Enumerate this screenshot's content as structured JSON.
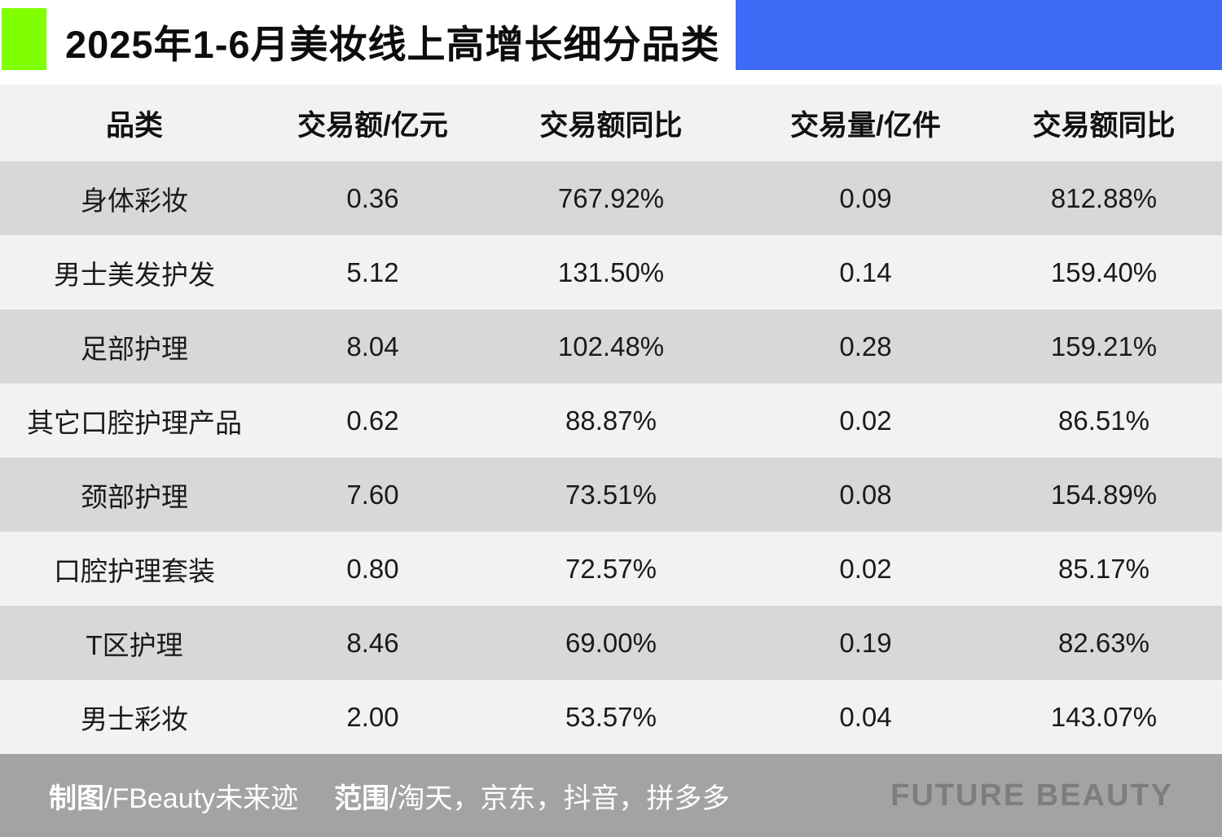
{
  "header": {
    "title": "2025年1-6月美妆线上高增长细分品类"
  },
  "colors": {
    "accent_green": "#7fff00",
    "accent_blue": "#3f6af5",
    "row_dark": "#d8d8d8",
    "row_light": "#f2f2f2",
    "footer_gray": "#a3a3a3",
    "brand_text_gray": "#7d7d7d"
  },
  "table": {
    "columns": [
      "品类",
      "交易额/亿元",
      "交易额同比",
      "交易量/亿件",
      "交易额同比"
    ],
    "rows": [
      [
        "身体彩妆",
        "0.36",
        "767.92%",
        "0.09",
        "812.88%"
      ],
      [
        "男士美发护发",
        "5.12",
        "131.50%",
        "0.14",
        "159.40%"
      ],
      [
        "足部护理",
        "8.04",
        "102.48%",
        "0.28",
        "159.21%"
      ],
      [
        "其它口腔护理产品",
        "0.62",
        "88.87%",
        "0.02",
        "86.51%"
      ],
      [
        "颈部护理",
        "7.60",
        "73.51%",
        "0.08",
        "154.89%"
      ],
      [
        "口腔护理套装",
        "0.80",
        "72.57%",
        "0.02",
        "85.17%"
      ],
      [
        "T区护理",
        "8.46",
        "69.00%",
        "0.19",
        "82.63%"
      ],
      [
        "男士彩妆",
        "2.00",
        "53.57%",
        "0.04",
        "143.07%"
      ]
    ]
  },
  "footer": {
    "credit_label": "制图",
    "credit_value": "/FBeauty未来迹",
    "scope_label": "范围",
    "scope_value": "/淘天，京东，抖音，拼多多",
    "brand": "FUTURE BEAUTY"
  },
  "chart_data": {
    "type": "table",
    "title": "2025年1-6月美妆线上高增长细分品类",
    "columns": [
      "品类",
      "交易额/亿元",
      "交易额同比",
      "交易量/亿件",
      "交易额同比"
    ],
    "rows": [
      [
        "身体彩妆",
        0.36,
        "767.92%",
        0.09,
        "812.88%"
      ],
      [
        "男士美发护发",
        5.12,
        "131.50%",
        0.14,
        "159.40%"
      ],
      [
        "足部护理",
        8.04,
        "102.48%",
        0.28,
        "159.21%"
      ],
      [
        "其它口腔护理产品",
        0.62,
        "88.87%",
        0.02,
        "86.51%"
      ],
      [
        "颈部护理",
        7.6,
        "73.51%",
        0.08,
        "154.89%"
      ],
      [
        "口腔护理套装",
        0.8,
        "72.57%",
        0.02,
        "85.17%"
      ],
      [
        "T区护理",
        8.46,
        "69.00%",
        0.19,
        "82.63%"
      ],
      [
        "男士彩妆",
        2.0,
        "53.57%",
        0.04,
        "143.07%"
      ]
    ]
  }
}
